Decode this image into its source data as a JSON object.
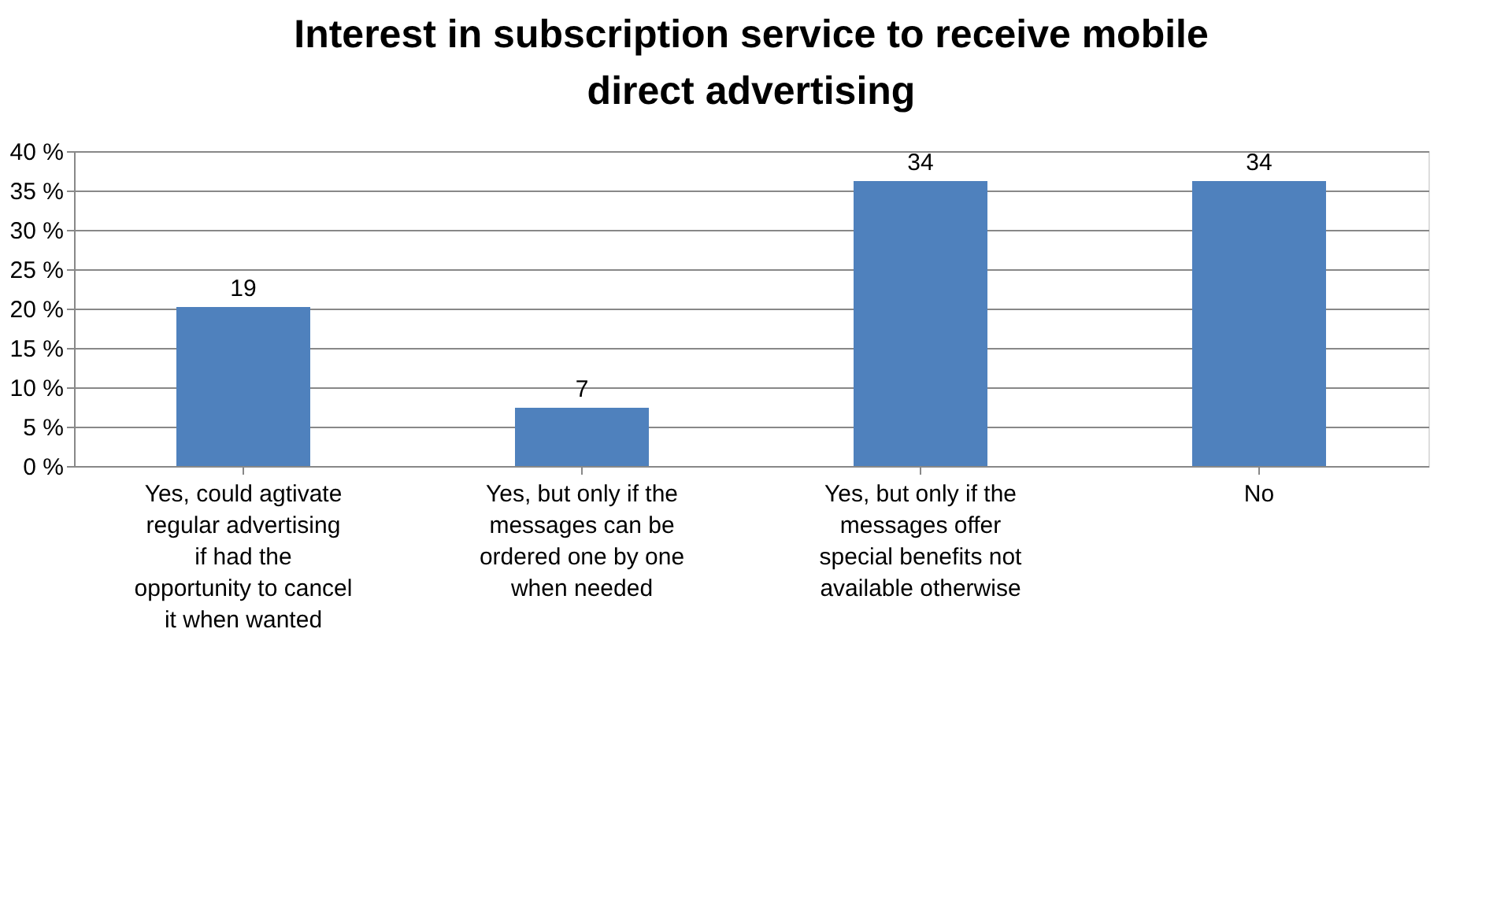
{
  "chart_data": {
    "type": "bar",
    "title": "Interest in subscription service to receive mobile direct advertising",
    "categories": [
      "Yes, could agtivate regular advertising if had the opportunity to cancel it when wanted",
      "Yes, but only if the messages can be ordered one by one when needed",
      "Yes, but only if the messages offer special benefits not available otherwise",
      "No"
    ],
    "values": [
      20.2,
      7.4,
      36.2,
      36.2
    ],
    "annotations": [
      {
        "text": "19",
        "x": "Yes, could agtivate regular advertising if had the opportunity to cancel it when wanted",
        "y": 20.2
      },
      {
        "text": "7",
        "x": "Yes, but only if the messages can be ordered one by one when needed",
        "y": 7.4
      },
      {
        "text": "34",
        "x": "Yes, but only if the messages offer special benefits not available otherwise",
        "y": 36.2
      },
      {
        "text": "34",
        "x": "No",
        "y": 36.2
      }
    ],
    "color": "#4f81bd",
    "ylim": [
      0,
      40
    ],
    "yticks": [
      {
        "value": 0,
        "label": "0 %"
      },
      {
        "value": 5,
        "label": "5 %"
      },
      {
        "value": 10,
        "label": "10 %"
      },
      {
        "value": 15,
        "label": "15 %"
      },
      {
        "value": 20,
        "label": "20 %"
      },
      {
        "value": 25,
        "label": "25 %"
      },
      {
        "value": 30,
        "label": "30 %"
      },
      {
        "value": 35,
        "label": "35 %"
      },
      {
        "value": 40,
        "label": "40 %"
      }
    ],
    "grid": "y",
    "legend": false
  }
}
